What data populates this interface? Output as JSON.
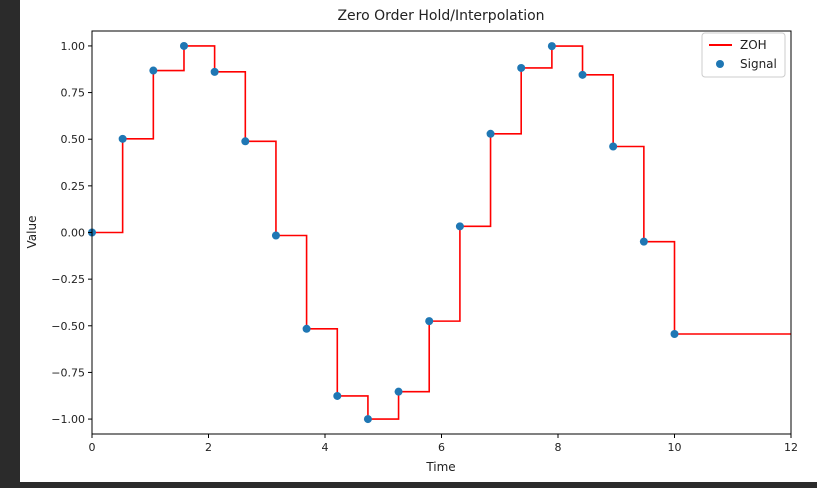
{
  "chart_data": {
    "type": "line",
    "title": "Zero Order Hold/Interpolation",
    "xlabel": "Time",
    "ylabel": "Value",
    "xlim": [
      0,
      12
    ],
    "ylim": [
      -1.08,
      1.08
    ],
    "xticks": [
      0,
      2,
      4,
      6,
      8,
      10,
      12
    ],
    "xtick_labels": [
      "0",
      "2",
      "4",
      "6",
      "8",
      "10",
      "12"
    ],
    "yticks": [
      1.0,
      0.75,
      0.5,
      0.25,
      0.0,
      -0.25,
      -0.5,
      -0.75,
      -1.0
    ],
    "ytick_labels": [
      "1.00",
      "0.75",
      "0.50",
      "0.25",
      "0.00",
      "−0.25",
      "−0.50",
      "−0.75",
      "−1.00"
    ],
    "grid": false,
    "legend": {
      "position": "top-right",
      "entries": [
        {
          "label": "ZOH",
          "kind": "line",
          "color": "#ff0000"
        },
        {
          "label": "Signal",
          "kind": "marker",
          "color": "#1f77b4"
        }
      ]
    },
    "series": [
      {
        "name": "ZOH",
        "kind": "step",
        "color": "#ff0000",
        "x": [
          0,
          0.526,
          1.053,
          1.579,
          2.105,
          2.632,
          3.158,
          3.684,
          4.211,
          4.737,
          5.263,
          5.789,
          6.316,
          6.842,
          7.368,
          7.895,
          8.421,
          8.947,
          9.474,
          10.0,
          12.0
        ],
        "y": [
          0.0,
          0.502,
          0.868,
          0.9999,
          0.861,
          0.489,
          -0.016,
          -0.516,
          -0.876,
          -1.0,
          -0.853,
          -0.475,
          0.033,
          0.529,
          0.882,
          0.999,
          0.845,
          0.461,
          -0.049,
          -0.544,
          -0.544
        ]
      },
      {
        "name": "Signal",
        "kind": "scatter",
        "color": "#1f77b4",
        "x": [
          0,
          0.526,
          1.053,
          1.579,
          2.105,
          2.632,
          3.158,
          3.684,
          4.211,
          4.737,
          5.263,
          5.789,
          6.316,
          6.842,
          7.368,
          7.895,
          8.421,
          8.947,
          9.474,
          10.0
        ],
        "y": [
          0.0,
          0.502,
          0.868,
          0.9999,
          0.861,
          0.489,
          -0.016,
          -0.516,
          -0.876,
          -1.0,
          -0.853,
          -0.475,
          0.033,
          0.529,
          0.882,
          0.999,
          0.845,
          0.461,
          -0.049,
          -0.544
        ]
      }
    ]
  }
}
